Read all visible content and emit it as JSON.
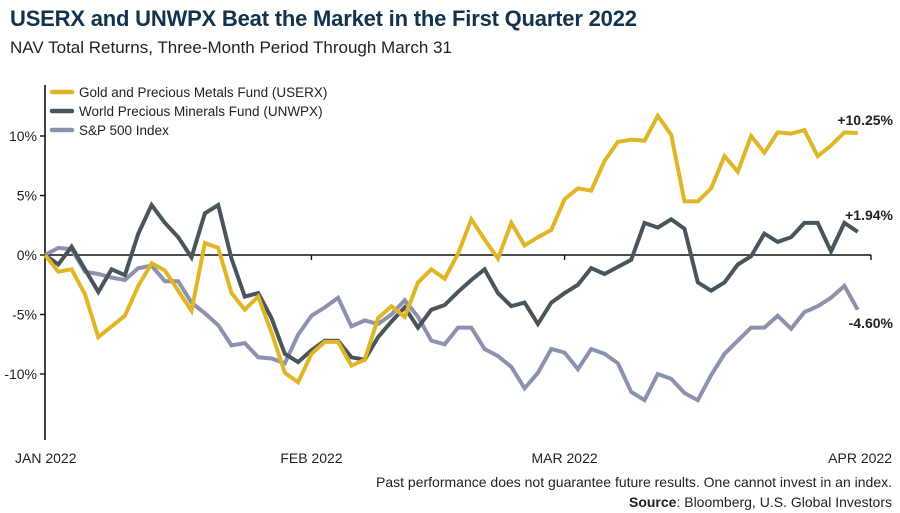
{
  "header": {
    "title": "USERX and UNWPX Beat the Market in the First Quarter 2022",
    "subtitle": "NAV Total Returns, Three-Month Period Through March 31"
  },
  "footer": {
    "disclaimer": "Past performance does not guarantee future results. One cannot invest in an index.",
    "source_label": "Source",
    "source_text": ": Bloomberg, U.S. Global Investors"
  },
  "chart_data": {
    "type": "line",
    "title": "USERX and UNWPX Beat the Market in the First Quarter 2022",
    "subtitle": "NAV Total Returns, Three-Month Period Through March 31",
    "xlabel": "",
    "ylabel": "",
    "x_tick_labels": [
      "JAN 2022",
      "FEB 2022",
      "MAR 2022",
      "APR 2022"
    ],
    "x_tick_positions": [
      0,
      20,
      39,
      62
    ],
    "x_range": [
      0,
      62
    ],
    "y_ticks": [
      10,
      5,
      0,
      -5,
      -10
    ],
    "y_tick_labels": [
      "10%",
      "5%",
      "0%",
      "-5%",
      "-10%"
    ],
    "ylim": [
      -15.5,
      14
    ],
    "grid": false,
    "zero_line": true,
    "legend_position": "top-left",
    "series": [
      {
        "name": "Gold and Precious Metals Fund (USERX)",
        "color": "#e0b526",
        "end_label": "+10.25%",
        "values": [
          0,
          -1.4,
          -1.2,
          -3.3,
          -6.9,
          -6.0,
          -5.1,
          -2.6,
          -0.7,
          -1.3,
          -3.0,
          -4.7,
          1.0,
          0.6,
          -3.2,
          -4.6,
          -3.5,
          -6.5,
          -9.9,
          -10.7,
          -8.3,
          -7.3,
          -7.3,
          -9.3,
          -8.8,
          -5.3,
          -4.3,
          -5.2,
          -2.3,
          -1.2,
          -2.0,
          0.1,
          3.0,
          1.3,
          -0.3,
          2.7,
          0.8,
          1.5,
          2.1,
          4.7,
          5.6,
          5.4,
          7.9,
          9.5,
          9.7,
          9.6,
          11.7,
          10.1,
          4.5,
          4.5,
          5.6,
          8.3,
          7.0,
          10.0,
          8.6,
          10.3,
          10.2,
          10.5,
          8.3,
          9.2,
          10.3,
          10.25
        ]
      },
      {
        "name": "World Precious Minerals Fund (UNWPX)",
        "color": "#4a545b",
        "end_label": "+1.94%",
        "values": [
          0,
          -0.8,
          0.7,
          -1.2,
          -3.1,
          -1.2,
          -1.7,
          1.8,
          4.2,
          2.7,
          1.5,
          -0.2,
          3.5,
          4.2,
          -0.3,
          -3.5,
          -3.2,
          -5.3,
          -8.3,
          -9.0,
          -8.0,
          -7.2,
          -7.2,
          -8.6,
          -8.8,
          -6.9,
          -5.6,
          -4.4,
          -6.1,
          -4.6,
          -4.2,
          -3.1,
          -2.1,
          -1.2,
          -3.2,
          -4.3,
          -4.0,
          -5.8,
          -4.0,
          -3.2,
          -2.5,
          -1.1,
          -1.6,
          -1.0,
          -0.4,
          2.7,
          2.3,
          3.0,
          2.2,
          -2.3,
          -3.0,
          -2.3,
          -0.8,
          -0.1,
          1.8,
          1.1,
          1.5,
          2.7,
          2.7,
          0.3,
          2.7,
          1.94
        ]
      },
      {
        "name": "S&P 500 Index",
        "color": "#8c91ae",
        "end_label": "-4.60%",
        "values": [
          0,
          0.6,
          0.5,
          -1.4,
          -1.6,
          -1.9,
          -2.1,
          -1.1,
          -0.9,
          -2.2,
          -2.2,
          -4.0,
          -4.9,
          -5.9,
          -7.6,
          -7.4,
          -8.6,
          -8.7,
          -9.1,
          -6.7,
          -5.1,
          -4.4,
          -3.6,
          -6.0,
          -5.5,
          -5.8,
          -5.0,
          -3.8,
          -5.2,
          -7.2,
          -7.5,
          -6.1,
          -6.1,
          -7.9,
          -8.5,
          -9.4,
          -11.2,
          -9.9,
          -7.9,
          -8.2,
          -9.6,
          -7.9,
          -8.3,
          -9.1,
          -11.5,
          -12.2,
          -10.0,
          -10.4,
          -11.6,
          -12.2,
          -10.1,
          -8.3,
          -7.2,
          -6.1,
          -6.1,
          -5.1,
          -6.2,
          -4.8,
          -4.3,
          -3.6,
          -2.6,
          -4.6
        ]
      }
    ]
  }
}
